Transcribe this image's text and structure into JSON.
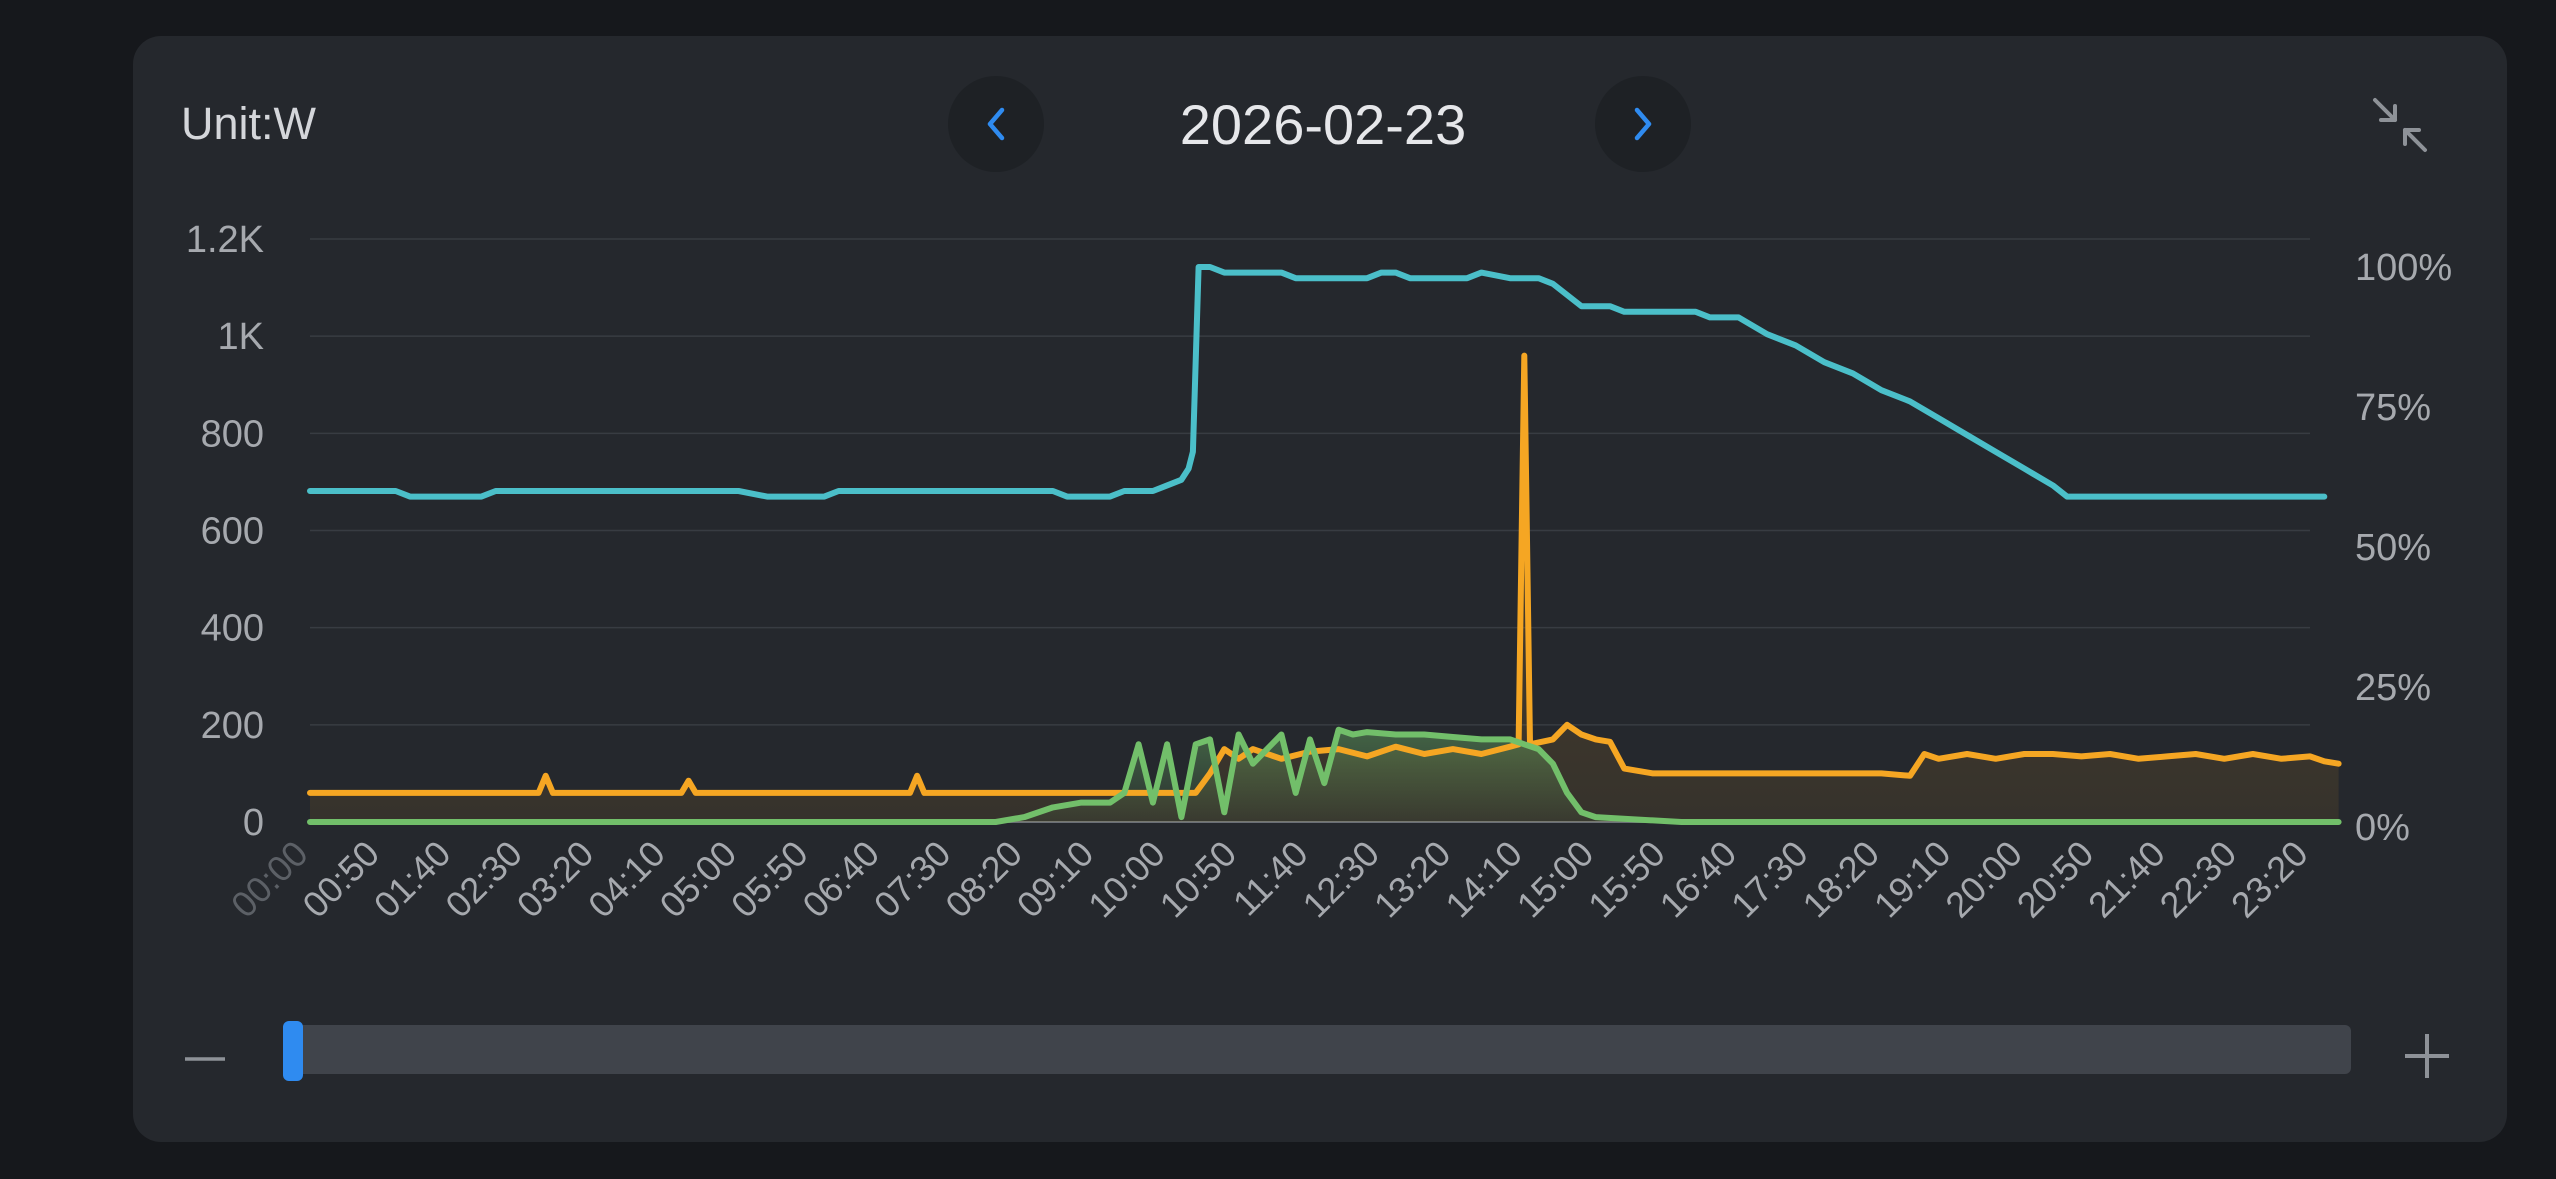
{
  "header": {
    "unit_label": "Unit:W",
    "date": "2026-02-23"
  },
  "colors": {
    "background": "#16181c",
    "card": "#25282d",
    "accent": "#2f8bf0",
    "battery_soc": "#4bbfc9",
    "load": "#f5a623",
    "solar": "#72bf6a",
    "grid_line": "#383c42",
    "tick_text": "#a6a9ae"
  },
  "icons": {
    "prev": "chevron-left-icon",
    "next": "chevron-right-icon",
    "collapse": "collapse-arrows-icon",
    "zoom_out": "minus-icon",
    "zoom_in": "plus-icon"
  },
  "zoom": {
    "position": 0
  },
  "chart_data": {
    "type": "line",
    "y_left": {
      "ticks": [
        "0",
        "200",
        "400",
        "600",
        "800",
        "1K",
        "1.2K"
      ],
      "lim": [
        0,
        1200
      ]
    },
    "y_right": {
      "ticks": [
        "0%",
        "25%",
        "50%",
        "75%",
        "100%"
      ],
      "lim": [
        0,
        105
      ]
    },
    "x_ticks": [
      "00:00",
      "00:50",
      "01:40",
      "02:30",
      "03:20",
      "04:10",
      "05:00",
      "05:50",
      "06:40",
      "07:30",
      "08:20",
      "09:10",
      "10:00",
      "10:50",
      "11:40",
      "12:30",
      "13:20",
      "14:10",
      "15:00",
      "15:50",
      "16:40",
      "17:30",
      "18:20",
      "19:10",
      "20:00",
      "20:50",
      "21:40",
      "22:30",
      "23:20"
    ],
    "grid": true,
    "series": [
      {
        "key": "battery_soc",
        "axis": "right",
        "area": false,
        "points": [
          [
            "00:00",
            60
          ],
          [
            "01:00",
            60
          ],
          [
            "01:10",
            59
          ],
          [
            "02:00",
            59
          ],
          [
            "02:10",
            60
          ],
          [
            "03:00",
            60
          ],
          [
            "04:00",
            60
          ],
          [
            "05:00",
            60
          ],
          [
            "05:20",
            59
          ],
          [
            "06:00",
            59
          ],
          [
            "06:10",
            60
          ],
          [
            "07:00",
            60
          ],
          [
            "08:00",
            60
          ],
          [
            "08:40",
            60
          ],
          [
            "08:50",
            59
          ],
          [
            "09:20",
            59
          ],
          [
            "09:30",
            60
          ],
          [
            "09:50",
            60
          ],
          [
            "10:00",
            61
          ],
          [
            "10:10",
            62
          ],
          [
            "10:15",
            64
          ],
          [
            "10:18",
            67
          ],
          [
            "10:22",
            100
          ],
          [
            "10:30",
            100
          ],
          [
            "10:40",
            99
          ],
          [
            "11:00",
            99
          ],
          [
            "11:20",
            99
          ],
          [
            "11:30",
            98
          ],
          [
            "12:00",
            98
          ],
          [
            "12:20",
            98
          ],
          [
            "12:30",
            99
          ],
          [
            "12:40",
            99
          ],
          [
            "12:50",
            98
          ],
          [
            "13:30",
            98
          ],
          [
            "13:40",
            99
          ],
          [
            "14:00",
            98
          ],
          [
            "14:20",
            98
          ],
          [
            "14:30",
            97
          ],
          [
            "14:50",
            93
          ],
          [
            "15:10",
            93
          ],
          [
            "15:20",
            92
          ],
          [
            "16:00",
            92
          ],
          [
            "16:10",
            92
          ],
          [
            "16:20",
            91
          ],
          [
            "16:40",
            91
          ],
          [
            "17:00",
            88
          ],
          [
            "17:20",
            86
          ],
          [
            "17:40",
            83
          ],
          [
            "18:00",
            81
          ],
          [
            "18:20",
            78
          ],
          [
            "18:40",
            76
          ],
          [
            "19:00",
            73
          ],
          [
            "19:20",
            70
          ],
          [
            "19:40",
            67
          ],
          [
            "20:00",
            64
          ],
          [
            "20:20",
            61
          ],
          [
            "20:30",
            59
          ],
          [
            "21:00",
            59
          ],
          [
            "21:30",
            59
          ],
          [
            "22:00",
            59
          ],
          [
            "22:30",
            59
          ],
          [
            "23:00",
            59
          ],
          [
            "23:20",
            59
          ],
          [
            "23:30",
            59
          ]
        ]
      },
      {
        "key": "load",
        "axis": "left",
        "area": true,
        "points": [
          [
            "00:00",
            60
          ],
          [
            "02:00",
            60
          ],
          [
            "02:40",
            60
          ],
          [
            "02:45",
            95
          ],
          [
            "02:50",
            60
          ],
          [
            "04:00",
            60
          ],
          [
            "04:20",
            60
          ],
          [
            "04:25",
            85
          ],
          [
            "04:30",
            60
          ],
          [
            "06:00",
            60
          ],
          [
            "07:00",
            60
          ],
          [
            "07:05",
            95
          ],
          [
            "07:10",
            60
          ],
          [
            "08:00",
            60
          ],
          [
            "09:00",
            60
          ],
          [
            "10:00",
            60
          ],
          [
            "10:20",
            60
          ],
          [
            "10:30",
            100
          ],
          [
            "10:40",
            150
          ],
          [
            "10:50",
            130
          ],
          [
            "11:00",
            150
          ],
          [
            "11:20",
            130
          ],
          [
            "11:40",
            145
          ],
          [
            "12:00",
            150
          ],
          [
            "12:20",
            135
          ],
          [
            "12:40",
            155
          ],
          [
            "13:00",
            140
          ],
          [
            "13:20",
            150
          ],
          [
            "13:40",
            140
          ],
          [
            "14:00",
            155
          ],
          [
            "14:06",
            160
          ],
          [
            "14:10",
            960
          ],
          [
            "14:14",
            160
          ],
          [
            "14:30",
            170
          ],
          [
            "14:40",
            200
          ],
          [
            "14:50",
            180
          ],
          [
            "15:00",
            170
          ],
          [
            "15:10",
            165
          ],
          [
            "15:20",
            110
          ],
          [
            "15:40",
            100
          ],
          [
            "16:00",
            100
          ],
          [
            "17:00",
            100
          ],
          [
            "18:00",
            100
          ],
          [
            "18:20",
            100
          ],
          [
            "18:40",
            95
          ],
          [
            "18:50",
            140
          ],
          [
            "19:00",
            130
          ],
          [
            "19:20",
            140
          ],
          [
            "19:40",
            130
          ],
          [
            "20:00",
            140
          ],
          [
            "20:20",
            140
          ],
          [
            "20:40",
            135
          ],
          [
            "21:00",
            140
          ],
          [
            "21:20",
            130
          ],
          [
            "21:40",
            135
          ],
          [
            "22:00",
            140
          ],
          [
            "22:20",
            130
          ],
          [
            "22:40",
            140
          ],
          [
            "23:00",
            130
          ],
          [
            "23:20",
            135
          ],
          [
            "23:30",
            125
          ],
          [
            "23:40",
            120
          ]
        ]
      },
      {
        "key": "solar",
        "axis": "left",
        "area": true,
        "points": [
          [
            "00:00",
            0
          ],
          [
            "06:00",
            0
          ],
          [
            "08:00",
            0
          ],
          [
            "08:20",
            10
          ],
          [
            "08:40",
            30
          ],
          [
            "09:00",
            40
          ],
          [
            "09:20",
            40
          ],
          [
            "09:30",
            60
          ],
          [
            "09:40",
            160
          ],
          [
            "09:50",
            40
          ],
          [
            "10:00",
            160
          ],
          [
            "10:10",
            10
          ],
          [
            "10:20",
            160
          ],
          [
            "10:30",
            170
          ],
          [
            "10:40",
            20
          ],
          [
            "10:50",
            180
          ],
          [
            "11:00",
            120
          ],
          [
            "11:10",
            150
          ],
          [
            "11:20",
            180
          ],
          [
            "11:30",
            60
          ],
          [
            "11:40",
            170
          ],
          [
            "11:50",
            80
          ],
          [
            "12:00",
            190
          ],
          [
            "12:10",
            180
          ],
          [
            "12:20",
            185
          ],
          [
            "12:40",
            180
          ],
          [
            "13:00",
            180
          ],
          [
            "13:20",
            175
          ],
          [
            "13:40",
            170
          ],
          [
            "14:00",
            170
          ],
          [
            "14:10",
            160
          ],
          [
            "14:20",
            150
          ],
          [
            "14:30",
            120
          ],
          [
            "14:40",
            60
          ],
          [
            "14:50",
            20
          ],
          [
            "15:00",
            10
          ],
          [
            "15:30",
            5
          ],
          [
            "16:00",
            0
          ],
          [
            "17:00",
            0
          ],
          [
            "23:40",
            0
          ]
        ]
      }
    ]
  }
}
